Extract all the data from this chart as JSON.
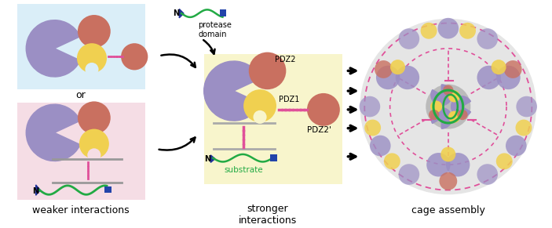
{
  "fig_width": 7.03,
  "fig_height": 2.91,
  "dpi": 100,
  "bg_color": "#ffffff",
  "purple": "#9b8fc4",
  "red_br": "#c97060",
  "yellow": "#f0d050",
  "pink": "#e0509a",
  "blue_sq": "#2244aa",
  "green": "#22aa44",
  "navy": "#223399",
  "lb": "#daeef8",
  "lp": "#f5dde5",
  "ly": "#f8f5cc",
  "lg": "#e5e5e5",
  "gray_shadow": "#aaaaaa",
  "label_weaker": "weaker interactions",
  "label_stronger": "stronger\ninteractions",
  "label_cage": "cage assembly"
}
